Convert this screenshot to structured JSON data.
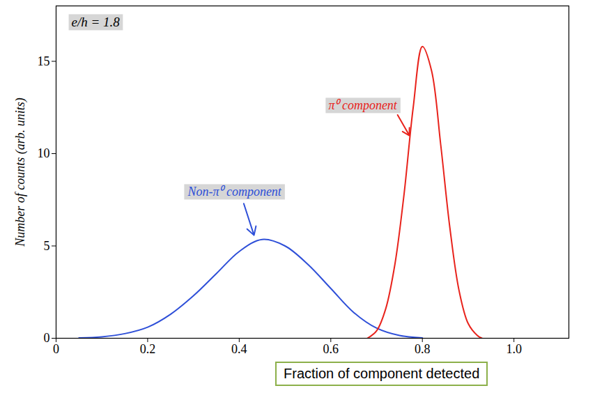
{
  "chart_data": {
    "type": "line",
    "y_label": "Number of counts (arb. units)",
    "x_label": "Fraction of component detected",
    "annotations": [
      "e/h = 1.8"
    ],
    "series": [
      {
        "name": "Non-π⁰ component",
        "color": "#2e4fd8",
        "x": [
          0.05,
          0.1,
          0.15,
          0.2,
          0.25,
          0.3,
          0.35,
          0.4,
          0.45,
          0.5,
          0.55,
          0.6,
          0.65,
          0.7,
          0.75,
          0.8
        ],
        "values": [
          0.02,
          0.08,
          0.25,
          0.6,
          1.3,
          2.3,
          3.5,
          4.7,
          5.35,
          5.0,
          4.0,
          2.7,
          1.4,
          0.55,
          0.15,
          0.02
        ]
      },
      {
        "name": "π⁰ component",
        "color": "#e8231c",
        "x": [
          0.68,
          0.7,
          0.72,
          0.74,
          0.76,
          0.78,
          0.8,
          0.82,
          0.84,
          0.86,
          0.88,
          0.9,
          0.92,
          0.93
        ],
        "values": [
          0,
          0.4,
          1.6,
          4.0,
          7.8,
          12.5,
          15.8,
          14.5,
          10.5,
          6.0,
          2.6,
          0.8,
          0.15,
          0
        ]
      }
    ],
    "xlim": [
      0,
      1.12
    ],
    "ylim": [
      0,
      18
    ],
    "xticks": [
      0,
      0.2,
      0.4,
      0.6,
      0.8,
      {
        "value": 1,
        "label": "1.0"
      }
    ],
    "yticks": [
      0,
      5,
      10,
      15
    ],
    "grid": false
  }
}
